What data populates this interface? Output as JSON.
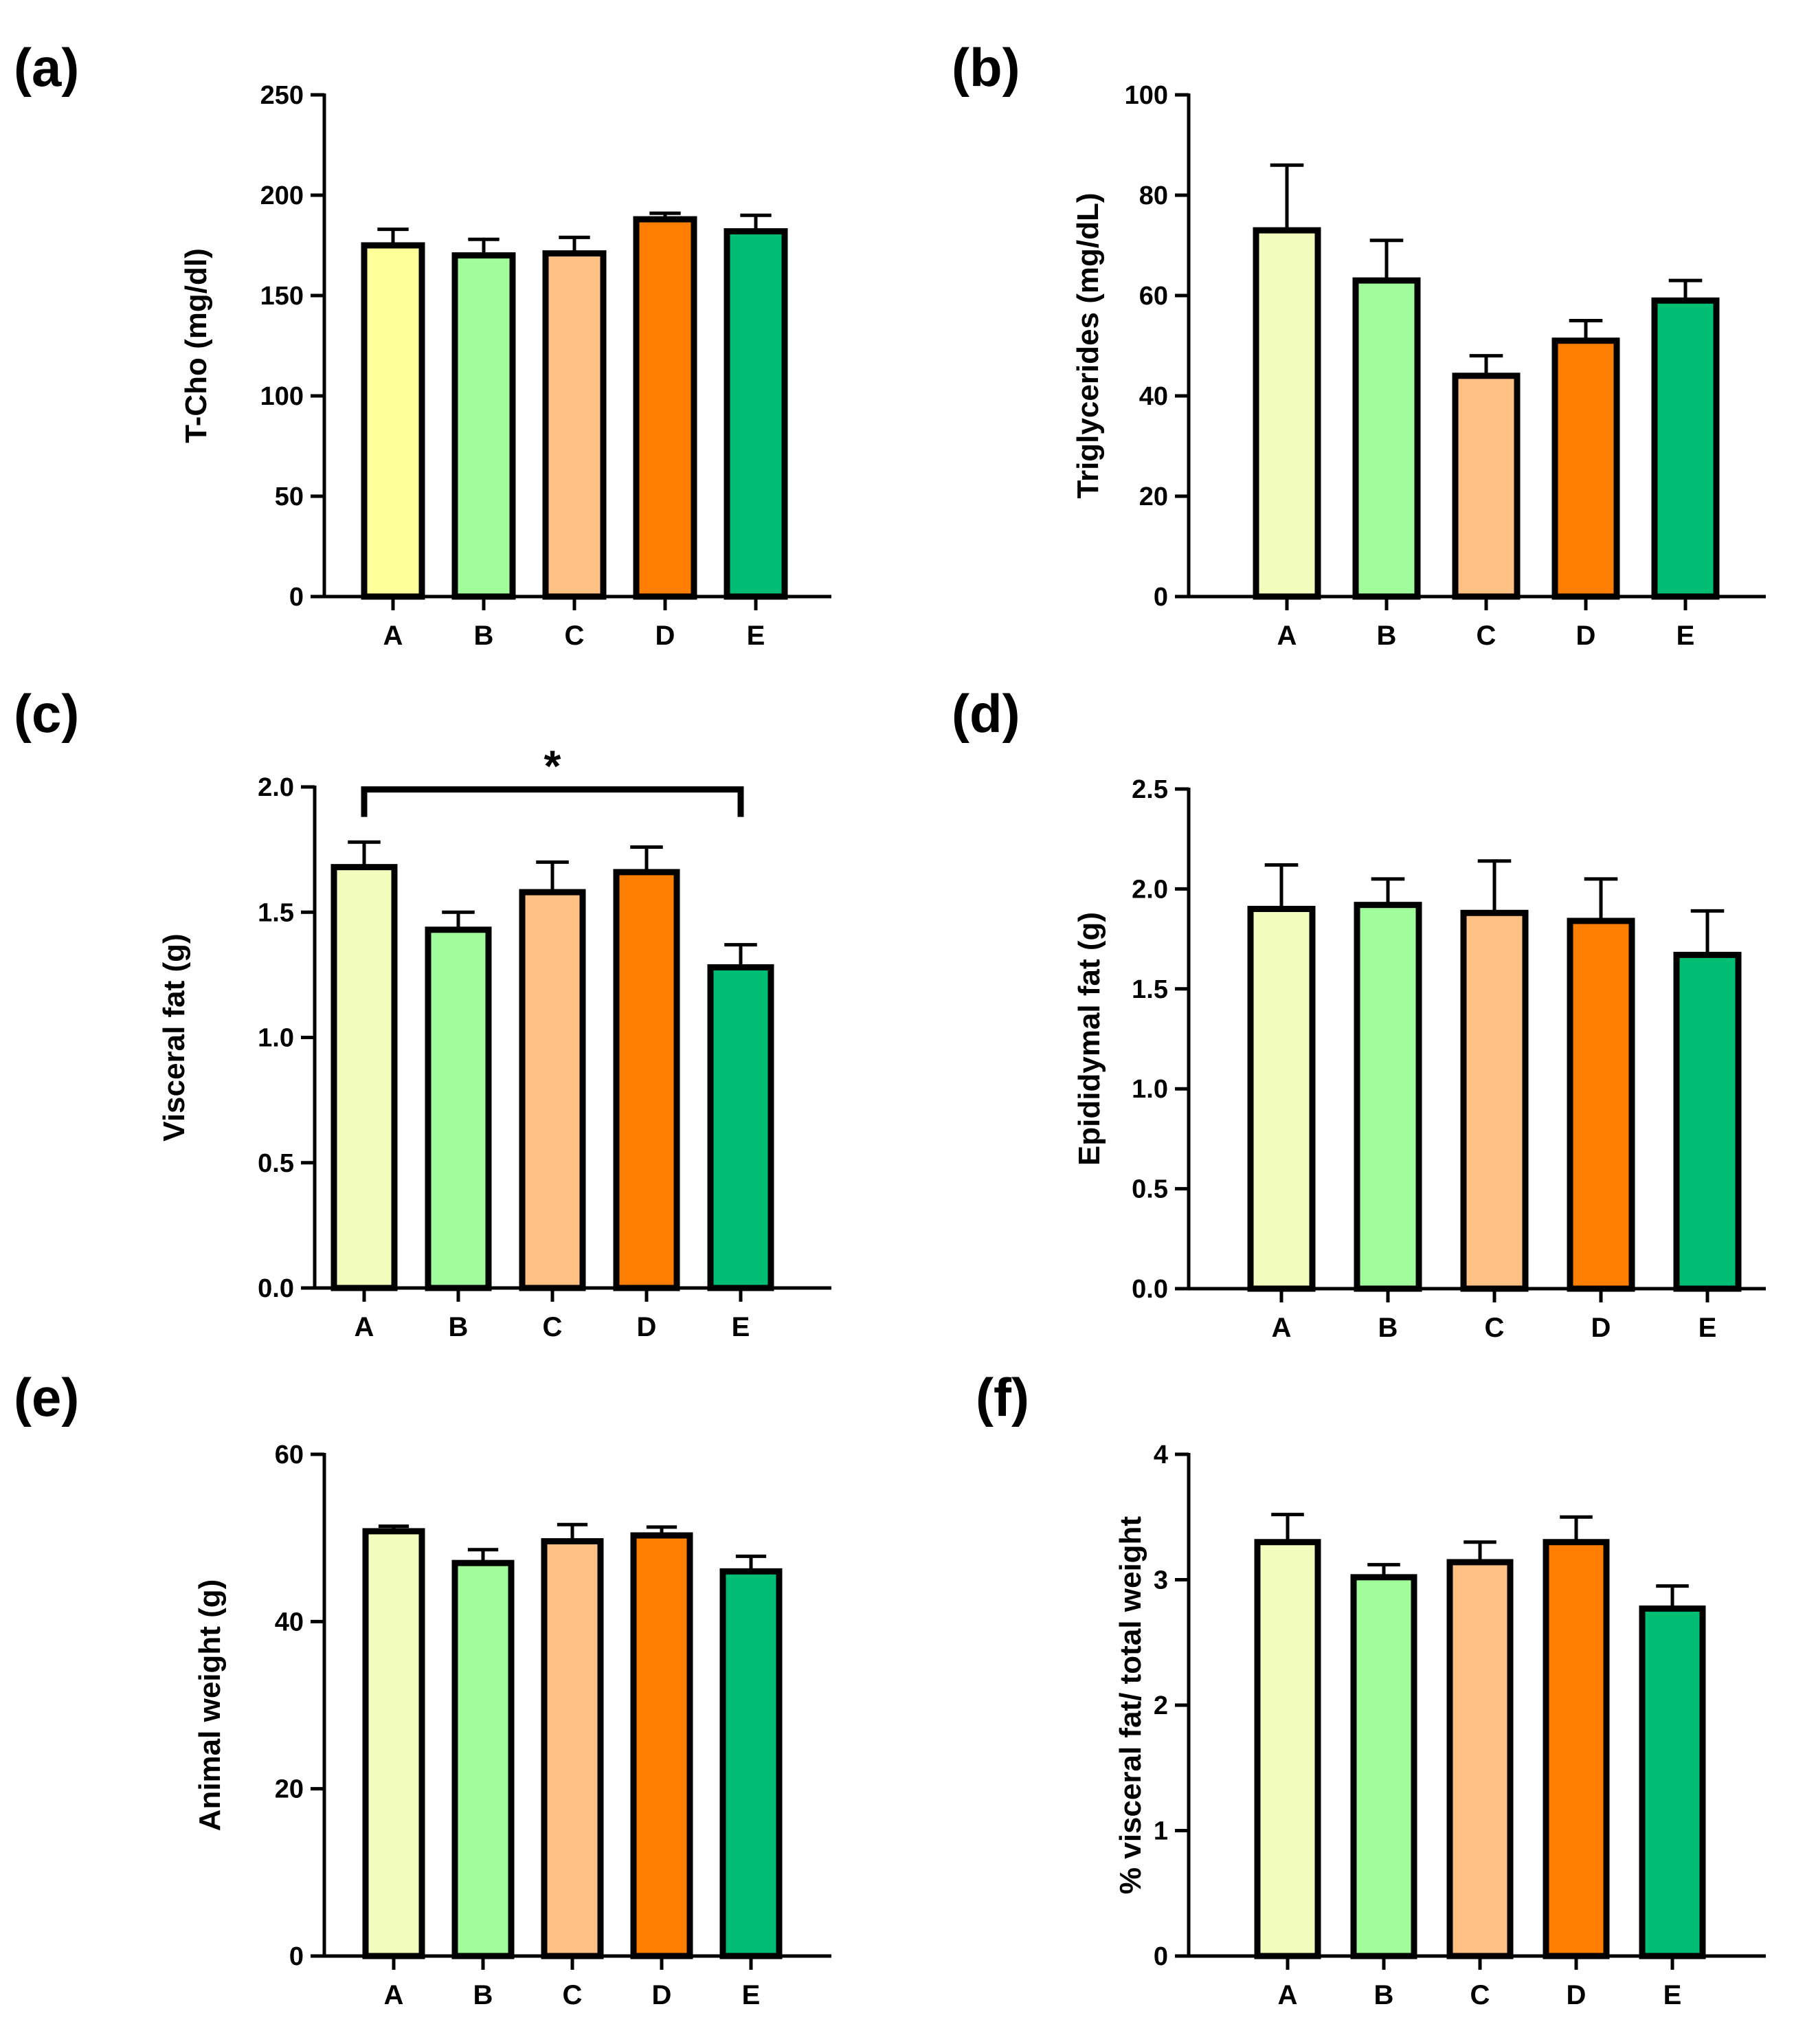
{
  "figure": {
    "panels_count": 6,
    "bar_outline_color": "#000000",
    "group_colors": {
      "A": "#f2fcbc",
      "A_panel_a": "#ffff99",
      "B": "#a1fd9c",
      "C": "#ffc183",
      "D": "#fe7e01",
      "E": "#00bd74"
    }
  },
  "chart_data": [
    {
      "type": "bar",
      "panel_label": "(a)",
      "ylabel": "T-Cho (mg/dl)",
      "xlabel": "",
      "categories": [
        "A",
        "B",
        "C",
        "D",
        "E"
      ],
      "values": [
        175,
        170,
        171,
        188,
        182
      ],
      "errors": [
        8,
        8,
        8,
        3,
        8
      ],
      "ylim": [
        0,
        250
      ],
      "yticks": [
        0,
        50,
        100,
        150,
        200,
        250
      ],
      "ytick_labels": [
        "0",
        "50",
        "100",
        "150",
        "200",
        "250"
      ],
      "colors": [
        "#ffff99",
        "#a1fd9c",
        "#ffc183",
        "#fe7e01",
        "#00bd74"
      ],
      "grid": false
    },
    {
      "type": "bar",
      "panel_label": "(b)",
      "ylabel": "Triglycerides (mg/dL)",
      "xlabel": "",
      "categories": [
        "A",
        "B",
        "C",
        "D",
        "E"
      ],
      "values": [
        73,
        63,
        44,
        51,
        59
      ],
      "errors": [
        13,
        8,
        4,
        4,
        4
      ],
      "ylim": [
        0,
        100
      ],
      "yticks": [
        0,
        20,
        40,
        60,
        80,
        100
      ],
      "ytick_labels": [
        "0",
        "20",
        "40",
        "60",
        "80",
        "100"
      ],
      "colors": [
        "#f2fcbc",
        "#a1fd9c",
        "#ffc183",
        "#fe7e01",
        "#00bd74"
      ],
      "grid": false
    },
    {
      "type": "bar",
      "panel_label": "(c)",
      "ylabel": "Visceral fat (g)",
      "xlabel": "",
      "categories": [
        "A",
        "B",
        "C",
        "D",
        "E"
      ],
      "values": [
        1.68,
        1.43,
        1.58,
        1.66,
        1.28
      ],
      "errors": [
        0.1,
        0.07,
        0.12,
        0.1,
        0.09
      ],
      "ylim": [
        0,
        2.0
      ],
      "yticks": [
        0,
        0.5,
        1.0,
        1.5,
        2.0
      ],
      "ytick_labels": [
        "0.0",
        "0.5",
        "1.0",
        "1.5",
        "2.0"
      ],
      "colors": [
        "#f2fcbc",
        "#a1fd9c",
        "#ffc183",
        "#fe7e01",
        "#00bd74"
      ],
      "grid": false,
      "significance": {
        "from": "A",
        "to": "E",
        "y_value": 1.99,
        "label": "*"
      }
    },
    {
      "type": "bar",
      "panel_label": "(d)",
      "ylabel": "Epididymal fat (g)",
      "xlabel": "",
      "categories": [
        "A",
        "B",
        "C",
        "D",
        "E"
      ],
      "values": [
        1.9,
        1.92,
        1.88,
        1.84,
        1.67
      ],
      "errors": [
        0.22,
        0.13,
        0.26,
        0.21,
        0.22
      ],
      "ylim": [
        0,
        2.5
      ],
      "yticks": [
        0,
        0.5,
        1.0,
        1.5,
        2.0,
        2.5
      ],
      "ytick_labels": [
        "0.0",
        "0.5",
        "1.0",
        "1.5",
        "2.0",
        "2.5"
      ],
      "colors": [
        "#f2fcbc",
        "#a1fd9c",
        "#ffc183",
        "#fe7e01",
        "#00bd74"
      ],
      "grid": false
    },
    {
      "type": "bar",
      "panel_label": "(e)",
      "ylabel": "Animal weight (g)",
      "xlabel": "",
      "categories": [
        "A",
        "B",
        "C",
        "D",
        "E"
      ],
      "values": [
        50.8,
        47.0,
        49.6,
        50.3,
        46.0
      ],
      "errors": [
        0.6,
        1.6,
        2.0,
        1.0,
        1.8
      ],
      "ylim": [
        0,
        60
      ],
      "yticks": [
        0,
        20,
        40,
        60
      ],
      "ytick_labels": [
        "0",
        "20",
        "40",
        "60"
      ],
      "colors": [
        "#f2fcbc",
        "#a1fd9c",
        "#ffc183",
        "#fe7e01",
        "#00bd74"
      ],
      "grid": false
    },
    {
      "type": "bar",
      "panel_label": "(f)",
      "ylabel": "% visceral fat/ total weight",
      "xlabel": "",
      "categories": [
        "A",
        "B",
        "C",
        "D",
        "E"
      ],
      "values": [
        3.3,
        3.02,
        3.14,
        3.3,
        2.77
      ],
      "errors": [
        0.22,
        0.1,
        0.16,
        0.2,
        0.18
      ],
      "ylim": [
        0,
        4
      ],
      "yticks": [
        0,
        1,
        2,
        3,
        4
      ],
      "ytick_labels": [
        "0",
        "1",
        "2",
        "3",
        "4"
      ],
      "colors": [
        "#f2fcbc",
        "#a1fd9c",
        "#ffc183",
        "#fe7e01",
        "#00bd74"
      ],
      "grid": false
    }
  ]
}
